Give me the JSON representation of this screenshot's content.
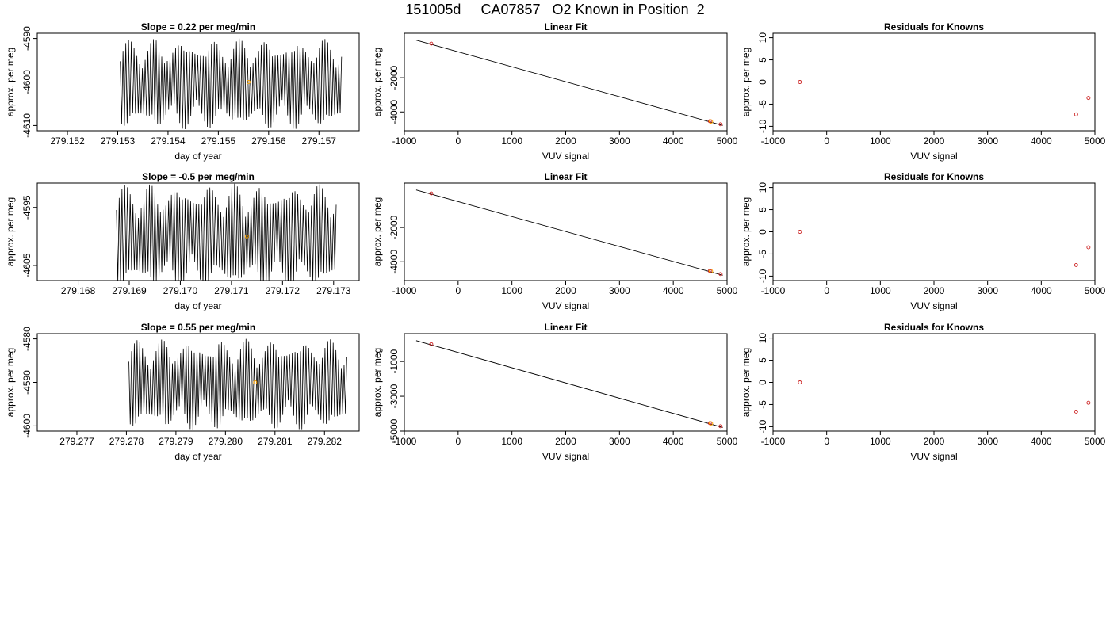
{
  "page_title": "151005d     CA07857   O2 Known in Position  2",
  "colors": {
    "axis": "#000000",
    "trace": "#000000",
    "known_point": "#cc2222",
    "current_point": "#ffa500"
  },
  "chart_data": [
    {
      "type": "line",
      "row": 1,
      "title": "Slope =  0.22  per meg/min",
      "xlabel": "day of year",
      "ylabel": "approx. per meg",
      "xlim": [
        279.1514,
        279.1578
      ],
      "ylim": [
        -4611.2,
        -4588.8
      ],
      "x_ticks": [
        "279.152",
        "279.153",
        "279.154",
        "279.155",
        "279.156",
        "279.157"
      ],
      "y_ticks": [
        "-4590",
        "-4600",
        "-4610"
      ],
      "trace": {
        "x_start": 279.15305,
        "x_end": 279.15745,
        "cycles": 80,
        "center": -4600.5,
        "amplitude": 7.5
      },
      "marker": {
        "x": 279.1556,
        "y": -4600
      },
      "series": [
        {
          "values": []
        }
      ]
    },
    {
      "type": "scatter",
      "row": 1,
      "title": "Linear Fit",
      "xlabel": "VUV signal",
      "ylabel": "approx. per meg",
      "xlim": [
        -1000,
        5000
      ],
      "ylim": [
        -5100,
        600
      ],
      "x_ticks": [
        "-1000",
        "0",
        "1000",
        "2000",
        "3000",
        "4000",
        "5000"
      ],
      "y_ticks": [
        "-2000",
        "-4000"
      ],
      "fit_line": {
        "x": [
          -780,
          4920
        ],
        "y": [
          200,
          -4790
        ]
      },
      "known_points": [
        {
          "x": -500,
          "y": -5
        },
        {
          "x": 4680,
          "y": -4540
        },
        {
          "x": 4880,
          "y": -4720
        }
      ],
      "current_points": [
        {
          "x": 4700,
          "y": -4555
        }
      ]
    },
    {
      "type": "scatter",
      "row": 1,
      "title": "Residuals for Knowns",
      "xlabel": "VUV signal",
      "ylabel": "approx. per meg",
      "xlim": [
        -1000,
        5000
      ],
      "ylim": [
        -11,
        11
      ],
      "x_ticks": [
        "-1000",
        "0",
        "1000",
        "2000",
        "3000",
        "4000",
        "5000"
      ],
      "y_ticks": [
        "10",
        "5",
        "0",
        "-5",
        "-10"
      ],
      "known_points": [
        {
          "x": -500,
          "y": 0
        },
        {
          "x": 4650,
          "y": -7.3
        },
        {
          "x": 4880,
          "y": -3.6
        }
      ]
    },
    {
      "type": "line",
      "row": 2,
      "title": "Slope =  -0.5  per meg/min",
      "xlabel": "day of year",
      "ylabel": "approx. per meg",
      "xlim": [
        279.1672,
        279.1735
      ],
      "ylim": [
        -4607.6,
        -4590.8
      ],
      "x_ticks": [
        "279.168",
        "279.169",
        "279.170",
        "279.171",
        "279.172",
        "279.173"
      ],
      "y_ticks": [
        "-4595",
        "-4605"
      ],
      "trace": {
        "x_start": 279.16875,
        "x_end": 279.17305,
        "cycles": 80,
        "center": -4600,
        "amplitude": 6.5
      },
      "marker": {
        "x": 279.1713,
        "y": -4600
      },
      "series": [
        {
          "values": []
        }
      ]
    },
    {
      "type": "scatter",
      "row": 2,
      "title": "Linear Fit",
      "xlabel": "VUV signal",
      "ylabel": "approx. per meg",
      "xlim": [
        -1000,
        5000
      ],
      "ylim": [
        -5100,
        600
      ],
      "x_ticks": [
        "-1000",
        "0",
        "1000",
        "2000",
        "3000",
        "4000",
        "5000"
      ],
      "y_ticks": [
        "-2000",
        "-4000"
      ],
      "fit_line": {
        "x": [
          -780,
          4920
        ],
        "y": [
          200,
          -4790
        ]
      },
      "known_points": [
        {
          "x": -500,
          "y": -5
        },
        {
          "x": 4680,
          "y": -4540
        },
        {
          "x": 4880,
          "y": -4720
        }
      ],
      "current_points": [
        {
          "x": 4700,
          "y": -4555
        }
      ]
    },
    {
      "type": "scatter",
      "row": 2,
      "title": "Residuals for Knowns",
      "xlabel": "VUV signal",
      "ylabel": "approx. per meg",
      "xlim": [
        -1000,
        5000
      ],
      "ylim": [
        -11,
        11
      ],
      "x_ticks": [
        "-1000",
        "0",
        "1000",
        "2000",
        "3000",
        "4000",
        "5000"
      ],
      "y_ticks": [
        "10",
        "5",
        "0",
        "-5",
        "-10"
      ],
      "known_points": [
        {
          "x": -500,
          "y": 0
        },
        {
          "x": 4650,
          "y": -7.5
        },
        {
          "x": 4880,
          "y": -3.5
        }
      ]
    },
    {
      "type": "line",
      "row": 3,
      "title": "Slope =  0.55  per meg/min",
      "xlabel": "day of year",
      "ylabel": "approx. per meg",
      "xlim": [
        279.2762,
        279.2827
      ],
      "ylim": [
        -4601.2,
        -4578.8
      ],
      "x_ticks": [
        "279.277",
        "279.278",
        "279.279",
        "279.280",
        "279.281",
        "279.282"
      ],
      "y_ticks": [
        "-4580",
        "-4590",
        "-4600"
      ],
      "trace": {
        "x_start": 279.27805,
        "x_end": 279.28245,
        "cycles": 80,
        "center": -4590.5,
        "amplitude": 7.5
      },
      "marker": {
        "x": 279.2806,
        "y": -4590
      },
      "series": [
        {
          "values": []
        }
      ]
    },
    {
      "type": "scatter",
      "row": 3,
      "title": "Linear Fit",
      "xlabel": "VUV signal",
      "ylabel": "approx. per meg",
      "xlim": [
        -1000,
        5000
      ],
      "ylim": [
        -5000,
        600
      ],
      "x_ticks": [
        "-1000",
        "0",
        "1000",
        "2000",
        "3000",
        "4000",
        "5000"
      ],
      "y_ticks": [
        "-1000",
        "-3000",
        "-5000"
      ],
      "fit_line": {
        "x": [
          -780,
          4920
        ],
        "y": [
          200,
          -4790
        ]
      },
      "known_points": [
        {
          "x": -500,
          "y": -5
        },
        {
          "x": 4680,
          "y": -4540
        },
        {
          "x": 4880,
          "y": -4720
        }
      ],
      "current_points": [
        {
          "x": 4700,
          "y": -4555
        }
      ]
    },
    {
      "type": "scatter",
      "row": 3,
      "title": "Residuals for Knowns",
      "xlabel": "VUV signal",
      "ylabel": "approx. per meg",
      "xlim": [
        -1000,
        5000
      ],
      "ylim": [
        -11,
        11
      ],
      "x_ticks": [
        "-1000",
        "0",
        "1000",
        "2000",
        "3000",
        "4000",
        "5000"
      ],
      "y_ticks": [
        "10",
        "5",
        "0",
        "-5",
        "-10"
      ],
      "known_points": [
        {
          "x": -500,
          "y": 0
        },
        {
          "x": 4650,
          "y": -6.6
        },
        {
          "x": 4880,
          "y": -4.6
        }
      ]
    }
  ]
}
